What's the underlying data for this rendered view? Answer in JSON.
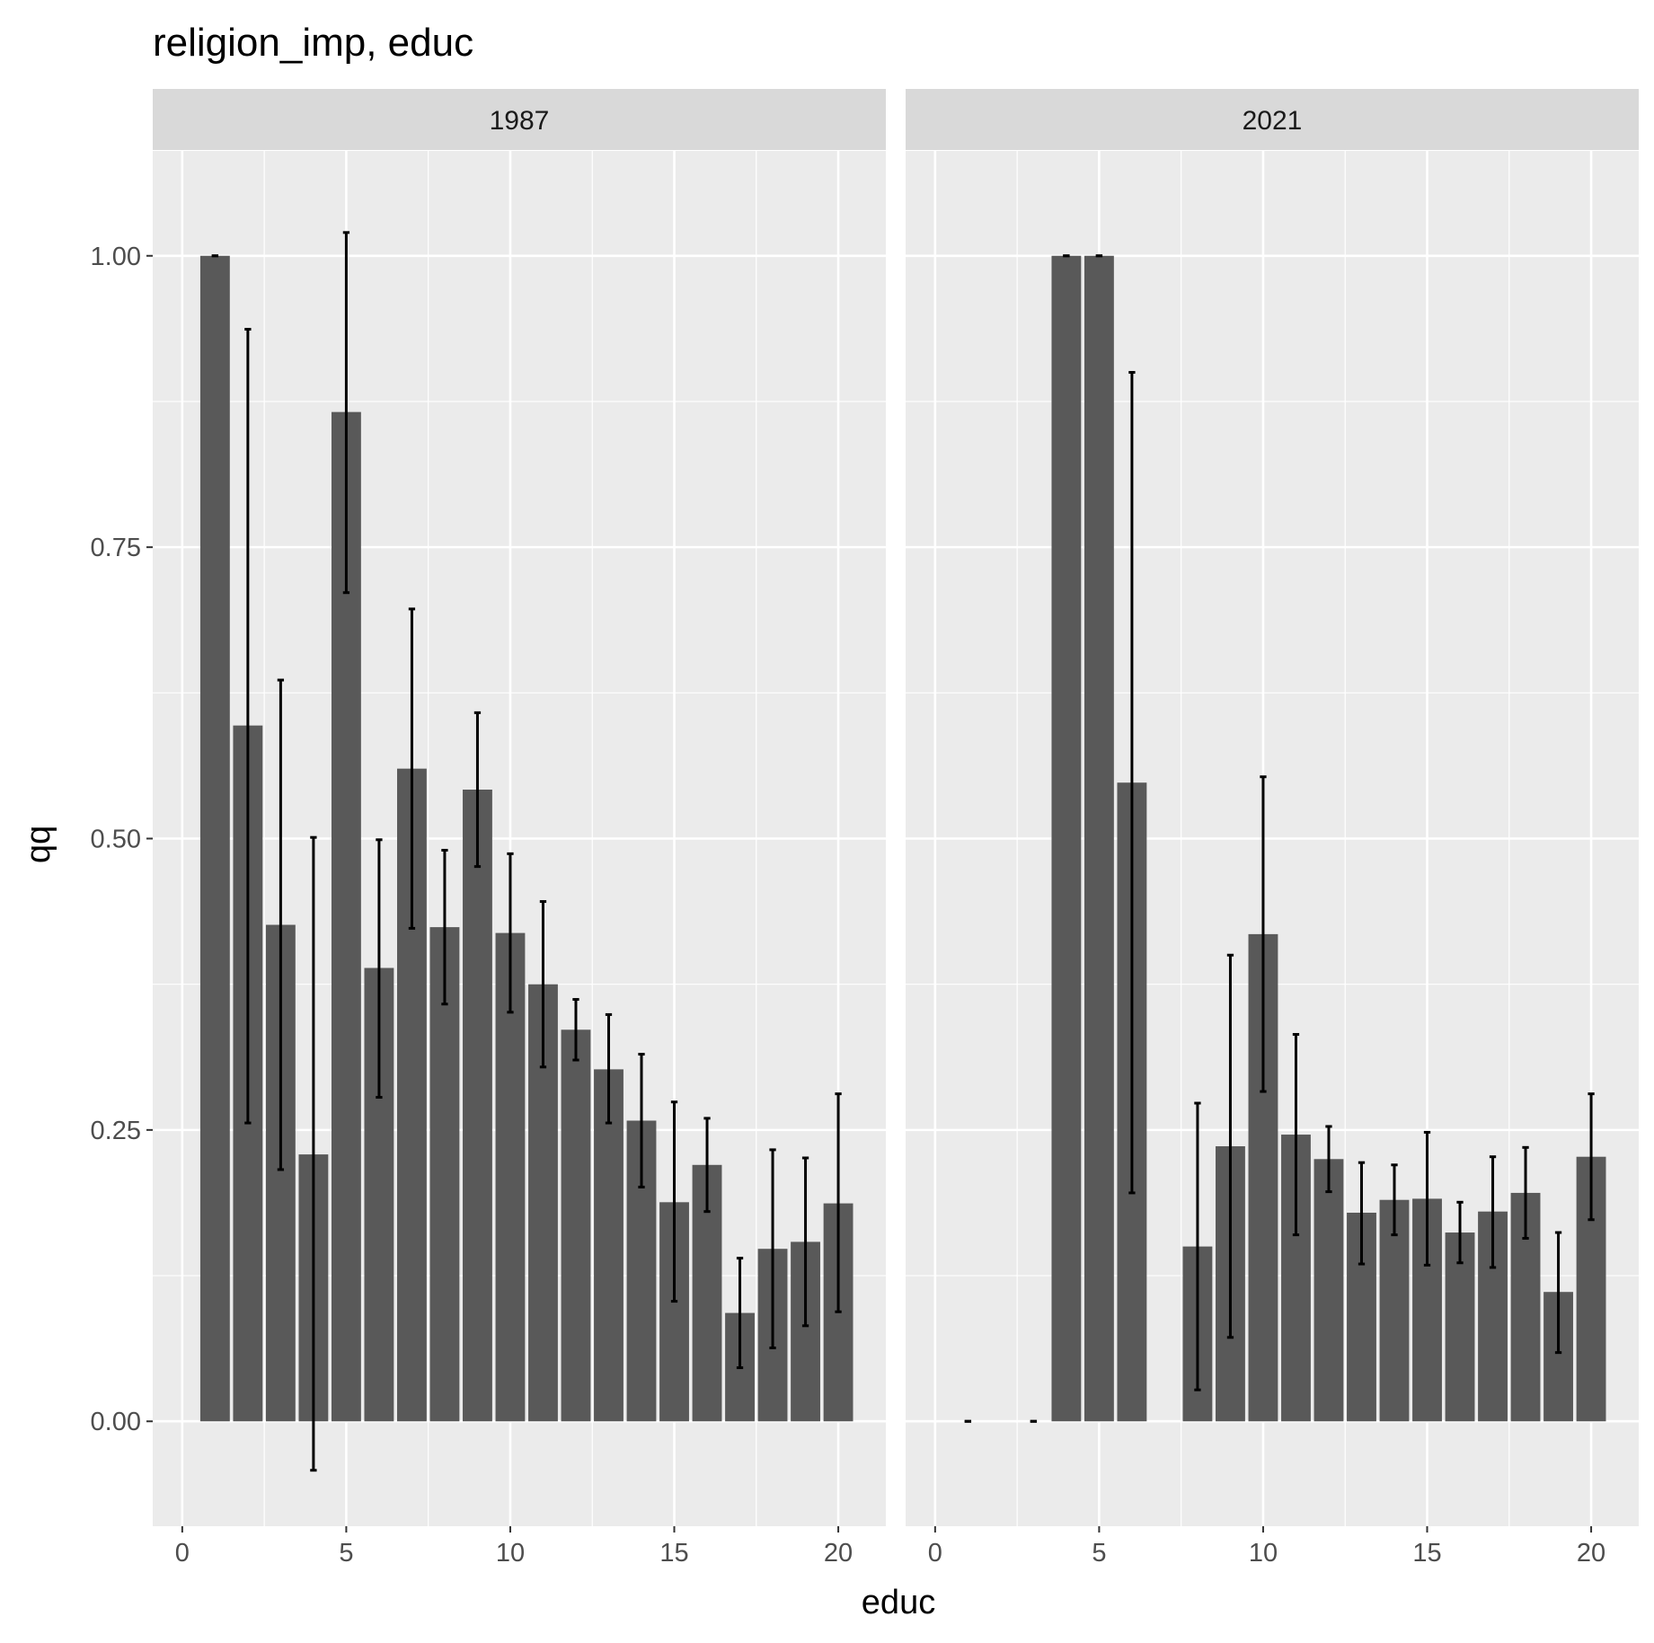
{
  "chart_data": {
    "type": "bar",
    "title": "religion_imp, educ",
    "xlabel": "educ",
    "ylabel": "qq",
    "xlim": [
      -0.9,
      21.45
    ],
    "ylim": [
      -0.09,
      1.09
    ],
    "xticks": [
      0,
      5,
      10,
      15,
      20
    ],
    "yticks": [
      0.0,
      0.25,
      0.5,
      0.75,
      1.0
    ],
    "ytick_labels": [
      "0.00",
      "0.25",
      "0.50",
      "0.75",
      "1.00"
    ],
    "grid": true,
    "panel_background": "#ebebeb",
    "strip_background": "#d9d9d9",
    "bar_color": "#595959",
    "errorbar_color": "#000000",
    "panels": [
      {
        "label": "1987",
        "bars": [
          {
            "x": 1,
            "y": 1.0,
            "ymin": 1.0,
            "ymax": 1.0
          },
          {
            "x": 2,
            "y": 0.597,
            "ymin": 0.256,
            "ymax": 0.937
          },
          {
            "x": 3,
            "y": 0.426,
            "ymin": 0.216,
            "ymax": 0.636
          },
          {
            "x": 4,
            "y": 0.229,
            "ymin": -0.042,
            "ymax": 0.501
          },
          {
            "x": 5,
            "y": 0.866,
            "ymin": 0.711,
            "ymax": 1.02
          },
          {
            "x": 6,
            "y": 0.389,
            "ymin": 0.278,
            "ymax": 0.499
          },
          {
            "x": 7,
            "y": 0.56,
            "ymin": 0.423,
            "ymax": 0.697
          },
          {
            "x": 8,
            "y": 0.424,
            "ymin": 0.358,
            "ymax": 0.49
          },
          {
            "x": 9,
            "y": 0.542,
            "ymin": 0.476,
            "ymax": 0.608
          },
          {
            "x": 10,
            "y": 0.419,
            "ymin": 0.351,
            "ymax": 0.487
          },
          {
            "x": 11,
            "y": 0.375,
            "ymin": 0.304,
            "ymax": 0.446
          },
          {
            "x": 12,
            "y": 0.336,
            "ymin": 0.31,
            "ymax": 0.362
          },
          {
            "x": 13,
            "y": 0.302,
            "ymin": 0.256,
            "ymax": 0.349
          },
          {
            "x": 14,
            "y": 0.258,
            "ymin": 0.201,
            "ymax": 0.315
          },
          {
            "x": 15,
            "y": 0.188,
            "ymin": 0.103,
            "ymax": 0.274
          },
          {
            "x": 16,
            "y": 0.22,
            "ymin": 0.18,
            "ymax": 0.26
          },
          {
            "x": 17,
            "y": 0.093,
            "ymin": 0.046,
            "ymax": 0.14
          },
          {
            "x": 18,
            "y": 0.148,
            "ymin": 0.063,
            "ymax": 0.233
          },
          {
            "x": 19,
            "y": 0.154,
            "ymin": 0.082,
            "ymax": 0.226
          },
          {
            "x": 20,
            "y": 0.187,
            "ymin": 0.094,
            "ymax": 0.281
          }
        ]
      },
      {
        "label": "2021",
        "bars": [
          {
            "x": 1,
            "y": 0.0,
            "ymin": 0.0,
            "ymax": 0.0
          },
          {
            "x": 3,
            "y": 0.0,
            "ymin": 0.0,
            "ymax": 0.0
          },
          {
            "x": 4,
            "y": 1.0,
            "ymin": 1.0,
            "ymax": 1.0
          },
          {
            "x": 5,
            "y": 1.0,
            "ymin": 1.0,
            "ymax": 1.0
          },
          {
            "x": 6,
            "y": 0.548,
            "ymin": 0.196,
            "ymax": 0.9
          },
          {
            "x": 8,
            "y": 0.15,
            "ymin": 0.027,
            "ymax": 0.273
          },
          {
            "x": 9,
            "y": 0.236,
            "ymin": 0.072,
            "ymax": 0.4
          },
          {
            "x": 10,
            "y": 0.418,
            "ymin": 0.283,
            "ymax": 0.553
          },
          {
            "x": 11,
            "y": 0.246,
            "ymin": 0.16,
            "ymax": 0.332
          },
          {
            "x": 12,
            "y": 0.225,
            "ymin": 0.197,
            "ymax": 0.253
          },
          {
            "x": 13,
            "y": 0.179,
            "ymin": 0.135,
            "ymax": 0.222
          },
          {
            "x": 14,
            "y": 0.19,
            "ymin": 0.16,
            "ymax": 0.22
          },
          {
            "x": 15,
            "y": 0.191,
            "ymin": 0.134,
            "ymax": 0.248
          },
          {
            "x": 16,
            "y": 0.162,
            "ymin": 0.136,
            "ymax": 0.188
          },
          {
            "x": 17,
            "y": 0.18,
            "ymin": 0.132,
            "ymax": 0.227
          },
          {
            "x": 18,
            "y": 0.196,
            "ymin": 0.157,
            "ymax": 0.235
          },
          {
            "x": 19,
            "y": 0.111,
            "ymin": 0.059,
            "ymax": 0.162
          },
          {
            "x": 20,
            "y": 0.227,
            "ymin": 0.173,
            "ymax": 0.281
          }
        ]
      }
    ]
  }
}
